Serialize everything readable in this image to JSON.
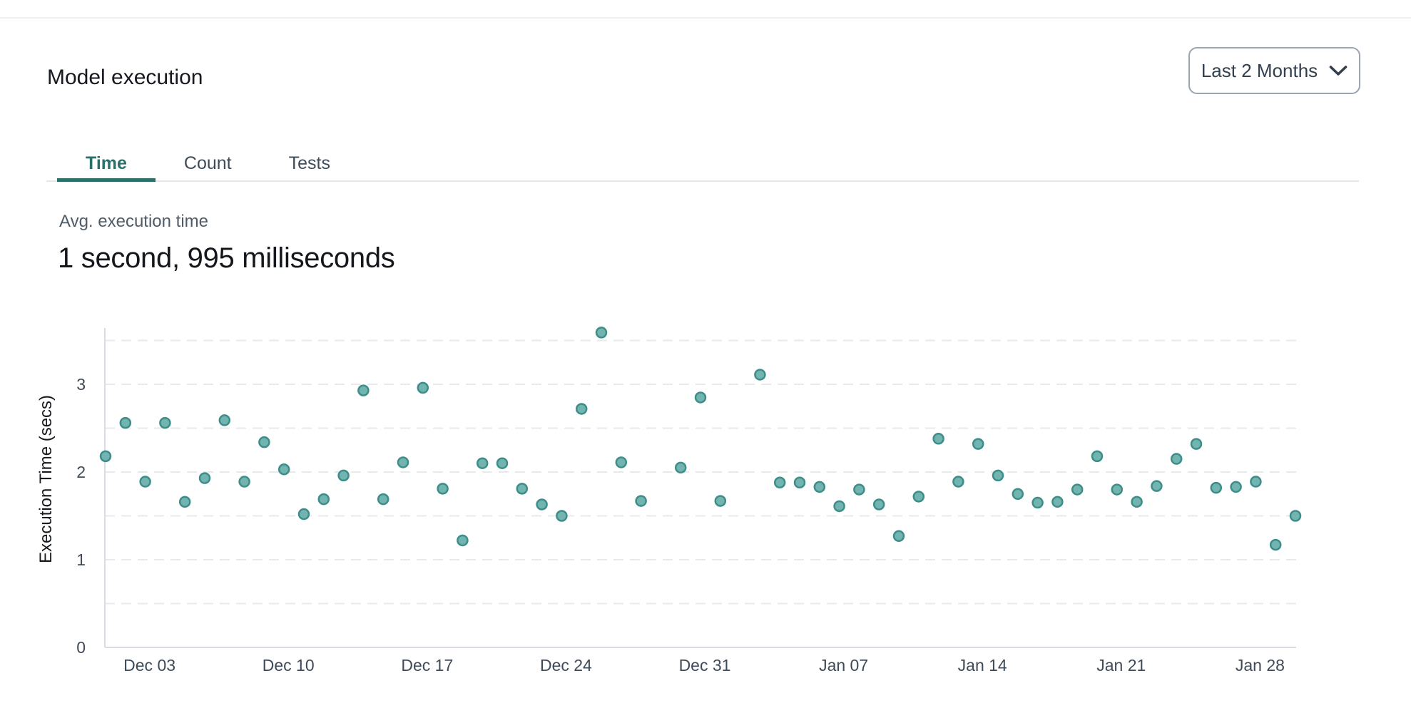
{
  "page": {
    "title": "Model execution"
  },
  "time_range_selector": {
    "label": "Last 2 Months",
    "icon": "chevron-down-icon"
  },
  "tabs": [
    {
      "label": "Time",
      "active": true
    },
    {
      "label": "Count",
      "active": false
    },
    {
      "label": "Tests",
      "active": false
    }
  ],
  "stat": {
    "label": "Avg. execution time",
    "value": "1 second, 995 milliseconds"
  },
  "colors": {
    "accent_teal": "#2a6f6a",
    "point_fill": "#71b4b0",
    "point_stroke": "#3d8d89",
    "gridline": "#e7e9ed",
    "axis_line": "#d9dde3",
    "tick_text": "#3f4b59",
    "axis_label_text": "#15191e"
  },
  "chart_data": {
    "type": "scatter",
    "title": "",
    "xlabel": "",
    "ylabel": "Execution Time (secs)",
    "ylim": [
      0,
      3.63
    ],
    "y_ticks": [
      0,
      1,
      2,
      3
    ],
    "grid_step": 0.5,
    "grid": "dashed-horizontal",
    "legend": "none",
    "x_unit": "day",
    "x_domain_days": [
      0,
      60
    ],
    "x_ticks": [
      {
        "day": 2,
        "label": "Dec 03"
      },
      {
        "day": 9,
        "label": "Dec 10"
      },
      {
        "day": 16,
        "label": "Dec 17"
      },
      {
        "day": 23,
        "label": "Dec 24"
      },
      {
        "day": 30,
        "label": "Dec 31"
      },
      {
        "day": 37,
        "label": "Jan 07"
      },
      {
        "day": 44,
        "label": "Jan 14"
      },
      {
        "day": 51,
        "label": "Jan 21"
      },
      {
        "day": 58,
        "label": "Jan 28"
      }
    ],
    "series": [
      {
        "name": "Avg execution time (secs)",
        "points": [
          {
            "date": "Dec 01",
            "day": 0,
            "secs": 2.18
          },
          {
            "date": "Dec 02",
            "day": 1,
            "secs": 2.56
          },
          {
            "date": "Dec 03",
            "day": 2,
            "secs": 1.89
          },
          {
            "date": "Dec 04",
            "day": 3,
            "secs": 2.56
          },
          {
            "date": "Dec 05",
            "day": 4,
            "secs": 1.66
          },
          {
            "date": "Dec 06",
            "day": 5,
            "secs": 1.93
          },
          {
            "date": "Dec 07",
            "day": 6,
            "secs": 2.59
          },
          {
            "date": "Dec 08",
            "day": 7,
            "secs": 1.89
          },
          {
            "date": "Dec 09",
            "day": 8,
            "secs": 2.34
          },
          {
            "date": "Dec 10",
            "day": 9,
            "secs": 2.03
          },
          {
            "date": "Dec 11",
            "day": 10,
            "secs": 1.52
          },
          {
            "date": "Dec 12",
            "day": 11,
            "secs": 1.69
          },
          {
            "date": "Dec 13",
            "day": 12,
            "secs": 1.96
          },
          {
            "date": "Dec 14",
            "day": 13,
            "secs": 2.93
          },
          {
            "date": "Dec 15",
            "day": 14,
            "secs": 1.69
          },
          {
            "date": "Dec 16",
            "day": 15,
            "secs": 2.11
          },
          {
            "date": "Dec 17",
            "day": 16,
            "secs": 2.96
          },
          {
            "date": "Dec 18",
            "day": 17,
            "secs": 1.81
          },
          {
            "date": "Dec 19",
            "day": 18,
            "secs": 1.22
          },
          {
            "date": "Dec 20",
            "day": 19,
            "secs": 2.1
          },
          {
            "date": "Dec 21",
            "day": 20,
            "secs": 2.1
          },
          {
            "date": "Dec 22",
            "day": 21,
            "secs": 1.81
          },
          {
            "date": "Dec 23",
            "day": 22,
            "secs": 1.63
          },
          {
            "date": "Dec 24",
            "day": 23,
            "secs": 1.5
          },
          {
            "date": "Dec 25",
            "day": 24,
            "secs": 2.72
          },
          {
            "date": "Dec 26",
            "day": 25,
            "secs": 3.59
          },
          {
            "date": "Dec 27",
            "day": 26,
            "secs": 2.11
          },
          {
            "date": "Dec 28",
            "day": 27,
            "secs": 1.67
          },
          {
            "date": "Dec 30",
            "day": 29,
            "secs": 2.05
          },
          {
            "date": "Dec 31",
            "day": 30,
            "secs": 2.85
          },
          {
            "date": "Jan 01",
            "day": 31,
            "secs": 1.67
          },
          {
            "date": "Jan 03",
            "day": 33,
            "secs": 3.11
          },
          {
            "date": "Jan 04",
            "day": 34,
            "secs": 1.88
          },
          {
            "date": "Jan 05",
            "day": 35,
            "secs": 1.88
          },
          {
            "date": "Jan 06",
            "day": 36,
            "secs": 1.83
          },
          {
            "date": "Jan 07",
            "day": 37,
            "secs": 1.61
          },
          {
            "date": "Jan 08",
            "day": 38,
            "secs": 1.8
          },
          {
            "date": "Jan 09",
            "day": 39,
            "secs": 1.63
          },
          {
            "date": "Jan 10",
            "day": 40,
            "secs": 1.27
          },
          {
            "date": "Jan 11",
            "day": 41,
            "secs": 1.72
          },
          {
            "date": "Jan 12",
            "day": 42,
            "secs": 2.38
          },
          {
            "date": "Jan 13",
            "day": 43,
            "secs": 1.89
          },
          {
            "date": "Jan 14",
            "day": 44,
            "secs": 2.32
          },
          {
            "date": "Jan 15",
            "day": 45,
            "secs": 1.96
          },
          {
            "date": "Jan 16",
            "day": 46,
            "secs": 1.75
          },
          {
            "date": "Jan 17",
            "day": 47,
            "secs": 1.65
          },
          {
            "date": "Jan 18",
            "day": 48,
            "secs": 1.66
          },
          {
            "date": "Jan 19",
            "day": 49,
            "secs": 1.8
          },
          {
            "date": "Jan 20",
            "day": 50,
            "secs": 2.18
          },
          {
            "date": "Jan 21",
            "day": 51,
            "secs": 1.8
          },
          {
            "date": "Jan 22",
            "day": 52,
            "secs": 1.66
          },
          {
            "date": "Jan 23",
            "day": 53,
            "secs": 1.84
          },
          {
            "date": "Jan 24",
            "day": 54,
            "secs": 2.15
          },
          {
            "date": "Jan 25",
            "day": 55,
            "secs": 2.32
          },
          {
            "date": "Jan 26",
            "day": 56,
            "secs": 1.82
          },
          {
            "date": "Jan 27",
            "day": 57,
            "secs": 1.83
          },
          {
            "date": "Jan 28",
            "day": 58,
            "secs": 1.89
          },
          {
            "date": "Jan 29",
            "day": 59,
            "secs": 1.17
          },
          {
            "date": "Jan 30",
            "day": 60,
            "secs": 1.5
          }
        ]
      }
    ]
  }
}
